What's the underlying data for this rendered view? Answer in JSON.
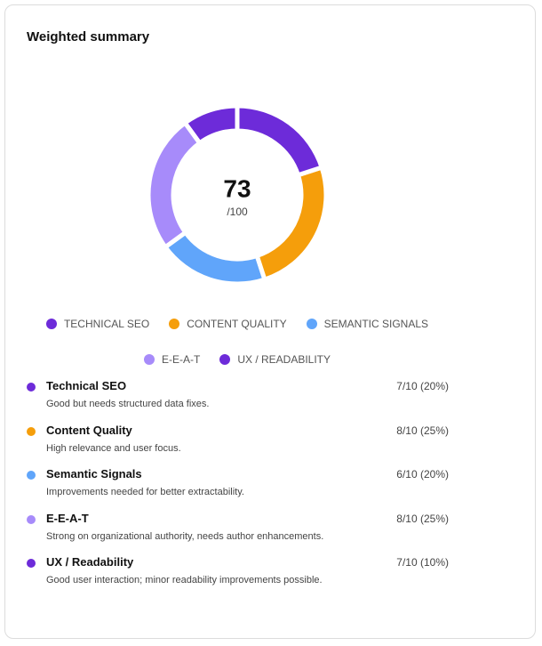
{
  "title": "Weighted summary",
  "chart_data": {
    "type": "donut",
    "categories": [
      "TECHNICAL SEO",
      "CONTENT QUALITY",
      "SEMANTIC SIGNALS",
      "E-E-A-T",
      "UX / READABILITY"
    ],
    "values": [
      20,
      25,
      20,
      25,
      10
    ],
    "colors": [
      "#6d2bd9",
      "#f59e0b",
      "#60a5fa",
      "#a78bfa",
      "#6d2bd9"
    ],
    "center_value": 73,
    "center_label": "/100"
  },
  "items": [
    {
      "name": "Technical SEO",
      "score": "7/10 (20%)",
      "description": "Good but needs structured data fixes."
    },
    {
      "name": "Content Quality",
      "score": "8/10 (25%)",
      "description": "High relevance and user focus."
    },
    {
      "name": "Semantic Signals",
      "score": "6/10 (20%)",
      "description": "Improvements needed for better extractability."
    },
    {
      "name": "E-E-A-T",
      "score": "8/10 (25%)",
      "description": "Strong on organizational authority, needs author enhancements."
    },
    {
      "name": "UX / Readability",
      "score": "7/10 (10%)",
      "description": "Good user interaction; minor readability improvements possible."
    }
  ]
}
